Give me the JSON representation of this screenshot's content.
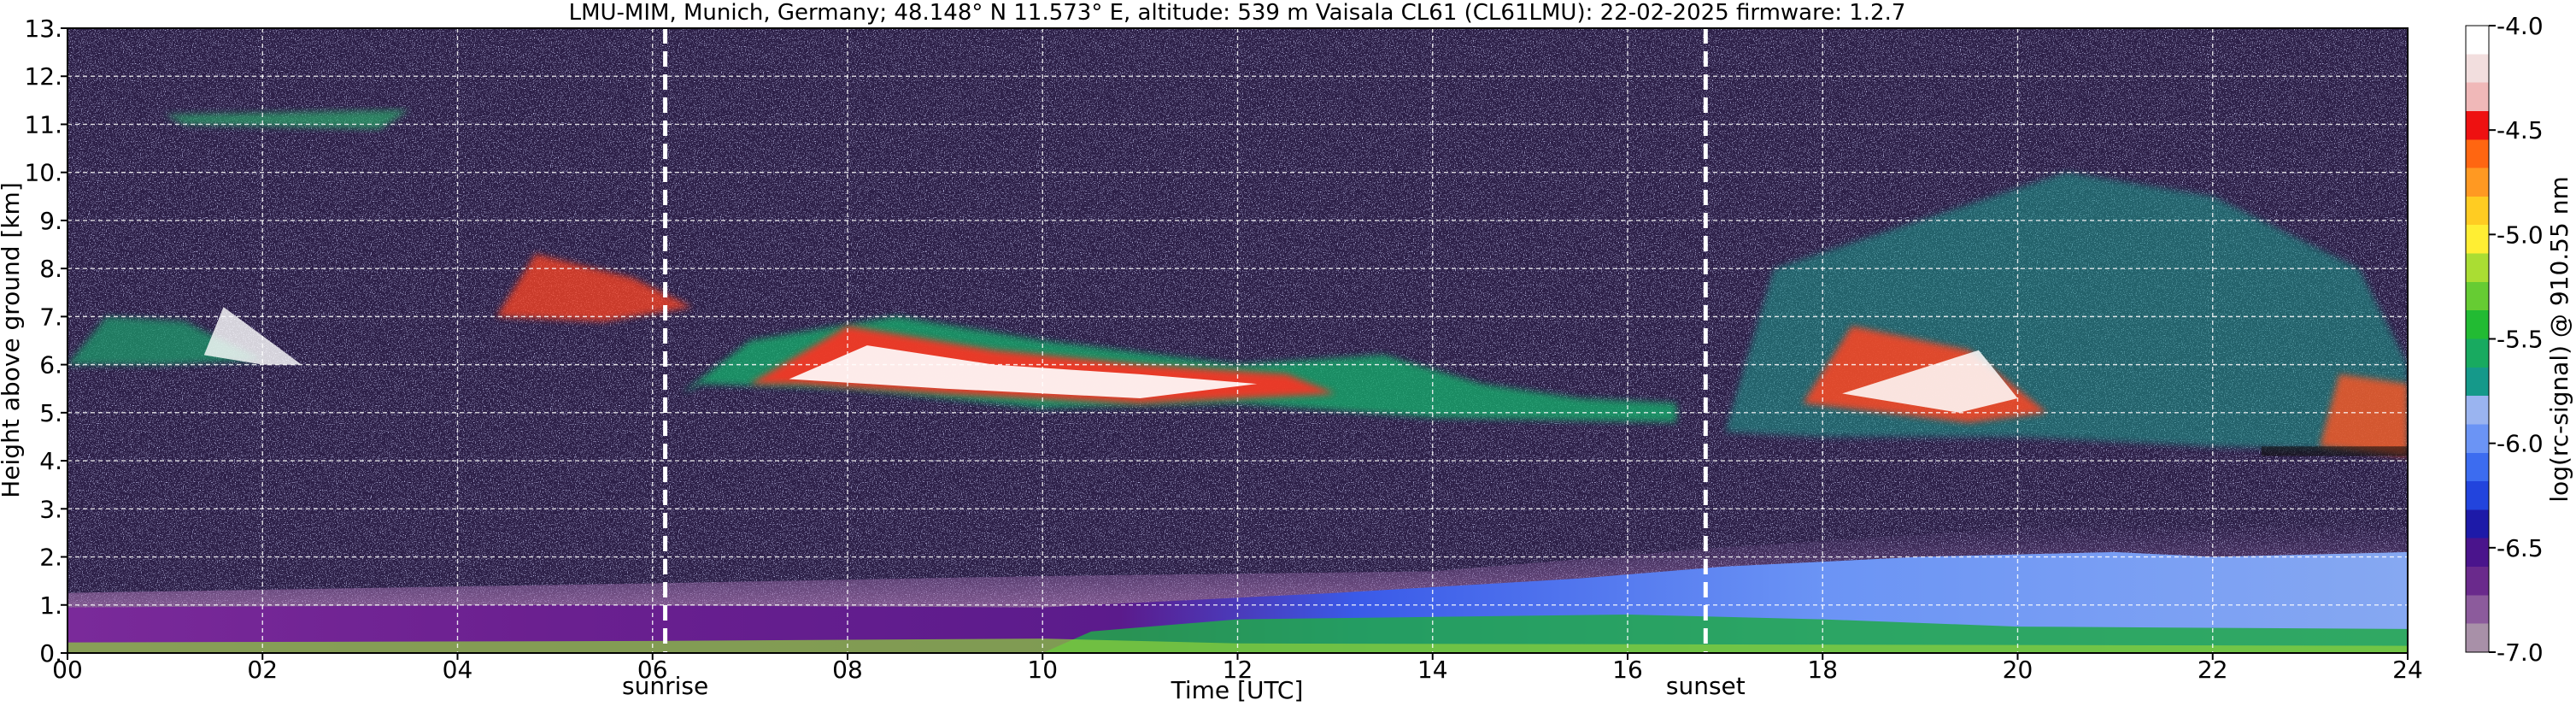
{
  "chart_data": {
    "type": "heatmap",
    "title": "LMU-MIM, Munich, Germany; 48.148° N 11.573° E, altitude: 539 m    Vaisala CL61 (CL61LMU): 22-02-2025    firmware: 1.2.7",
    "xlabel": "Time [UTC]",
    "ylabel": "Height above ground [km]",
    "xlim": [
      0,
      24
    ],
    "ylim": [
      0,
      13
    ],
    "x_ticks": [
      "00",
      "02",
      "04",
      "06",
      "08",
      "10",
      "12",
      "14",
      "16",
      "18",
      "20",
      "22",
      "24"
    ],
    "y_ticks": [
      "0.",
      "1.",
      "2.",
      "3.",
      "4.",
      "5.",
      "6.",
      "7.",
      "8.",
      "9.",
      "10.",
      "11.",
      "12.",
      "13."
    ],
    "grid": true,
    "colorbar": {
      "label": "log(rc-signal) @ 910.55 nm",
      "range": [
        -7.0,
        -4.0
      ],
      "ticks": [
        "-4.0",
        "-4.5",
        "-5.0",
        "-5.5",
        "-6.0",
        "-6.5",
        "-7.0"
      ],
      "colors": [
        "#a890a8",
        "#8c5b9c",
        "#6a2a8c",
        "#4a148c",
        "#1d1aa8",
        "#2244dd",
        "#3c6cf0",
        "#6b94f5",
        "#9ab4f0",
        "#15998a",
        "#18aa60",
        "#22bb33",
        "#66cc33",
        "#aadd33",
        "#ffee33",
        "#ffcc22",
        "#ff9922",
        "#ff6611",
        "#ee1111",
        "#f0b8b8",
        "#f2dede",
        "#ffffff"
      ]
    },
    "markers": [
      {
        "time": 6.13,
        "label": "sunrise"
      },
      {
        "time": 16.8,
        "label": "sunset"
      }
    ]
  }
}
